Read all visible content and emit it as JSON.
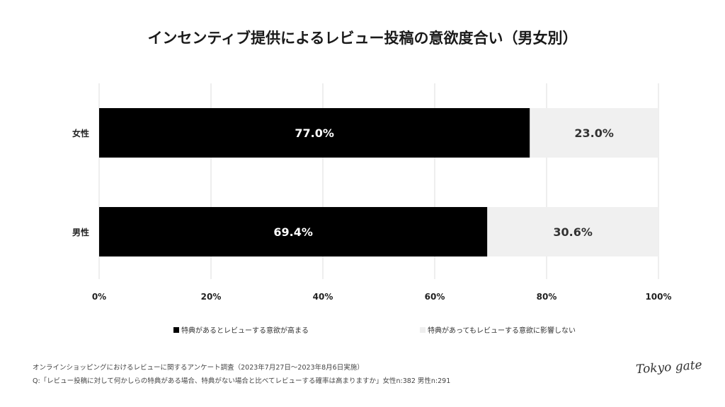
{
  "chart_data": {
    "type": "bar",
    "orientation": "horizontal",
    "stacked": true,
    "title": "インセンティブ提供によるレビュー投稿の意欲度合い（男女別）",
    "categories": [
      "女性",
      "男性"
    ],
    "series": [
      {
        "name": "特典があるとレビューする意欲が高まる",
        "values": [
          77.0,
          69.4
        ],
        "labels": [
          "77.0%",
          "69.4%"
        ],
        "color": "#000000"
      },
      {
        "name": "特典があってもレビューする意欲に影響しない",
        "values": [
          23.0,
          30.6
        ],
        "labels": [
          "23.0%",
          "30.6%"
        ],
        "color": "#f0f0f0"
      }
    ],
    "xlim": [
      0,
      100
    ],
    "xticks": [
      "0%",
      "20%",
      "40%",
      "60%",
      "80%",
      "100%"
    ],
    "grid": true,
    "legend": "bottom"
  },
  "notes": {
    "survey": "オンラインショッピングにおけるレビューに関するアンケート調査（2023年7月27日〜2023年8月6日実施）",
    "question": "Q:「レビュー投稿に対して何かしらの特典がある場合、特典がない場合と比べてレビューする確率は高まりますか」女性n:382 男性n:291"
  },
  "logo": "Tokyo gate"
}
